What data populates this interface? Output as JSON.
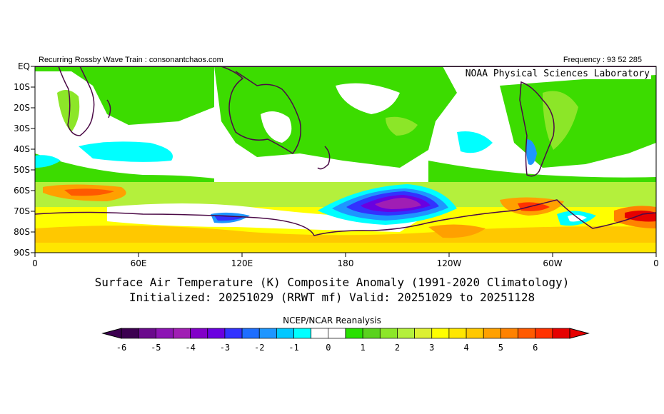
{
  "header": {
    "left": "Recurring Rossby Wave Train : consonantchaos.com",
    "right": "Frequency : 93 52 285",
    "org": "NOAA Physical Sciences Laboratory"
  },
  "map": {
    "y_labels": [
      "EQ",
      "10S",
      "20S",
      "30S",
      "40S",
      "50S",
      "60S",
      "70S",
      "80S",
      "90S"
    ],
    "x_labels": [
      "0",
      "60E",
      "120E",
      "180",
      "120W",
      "60W",
      "0"
    ]
  },
  "title": {
    "line1": "Surface Air Temperature (K) Composite Anomaly (1991-2020 Climatology)",
    "line2": "Initialized: 20251029 (RRWT mf) Valid: 20251029 to 20251128"
  },
  "colorbar": {
    "title": "NCEP/NCAR Reanalysis",
    "ticks": [
      "-6",
      "-5",
      "-4",
      "-3",
      "-2",
      "-1",
      "0",
      "1",
      "2",
      "3",
      "4",
      "5",
      "6"
    ],
    "colors": [
      "#3c0050",
      "#6a0a8c",
      "#8c14b4",
      "#a01eb4",
      "#8200c8",
      "#6a00e0",
      "#3232ff",
      "#1e6eff",
      "#1e96ff",
      "#00c8ff",
      "#00ffff",
      "#ffffff",
      "#ffffff",
      "#28e000",
      "#5ad21e",
      "#8ce628",
      "#b4f03c",
      "#dcf032",
      "#ffff00",
      "#ffe600",
      "#ffc800",
      "#ffa000",
      "#ff8200",
      "#ff5a00",
      "#ff3200",
      "#e60000"
    ]
  },
  "colors": {
    "green": "#3cdc00",
    "light_green": "#8ce628",
    "cyan": "#00ffff",
    "yellow": "#ffff00",
    "orange": "#ff8c00",
    "purple": "#8c14b4",
    "outline": "#4b0a46"
  }
}
